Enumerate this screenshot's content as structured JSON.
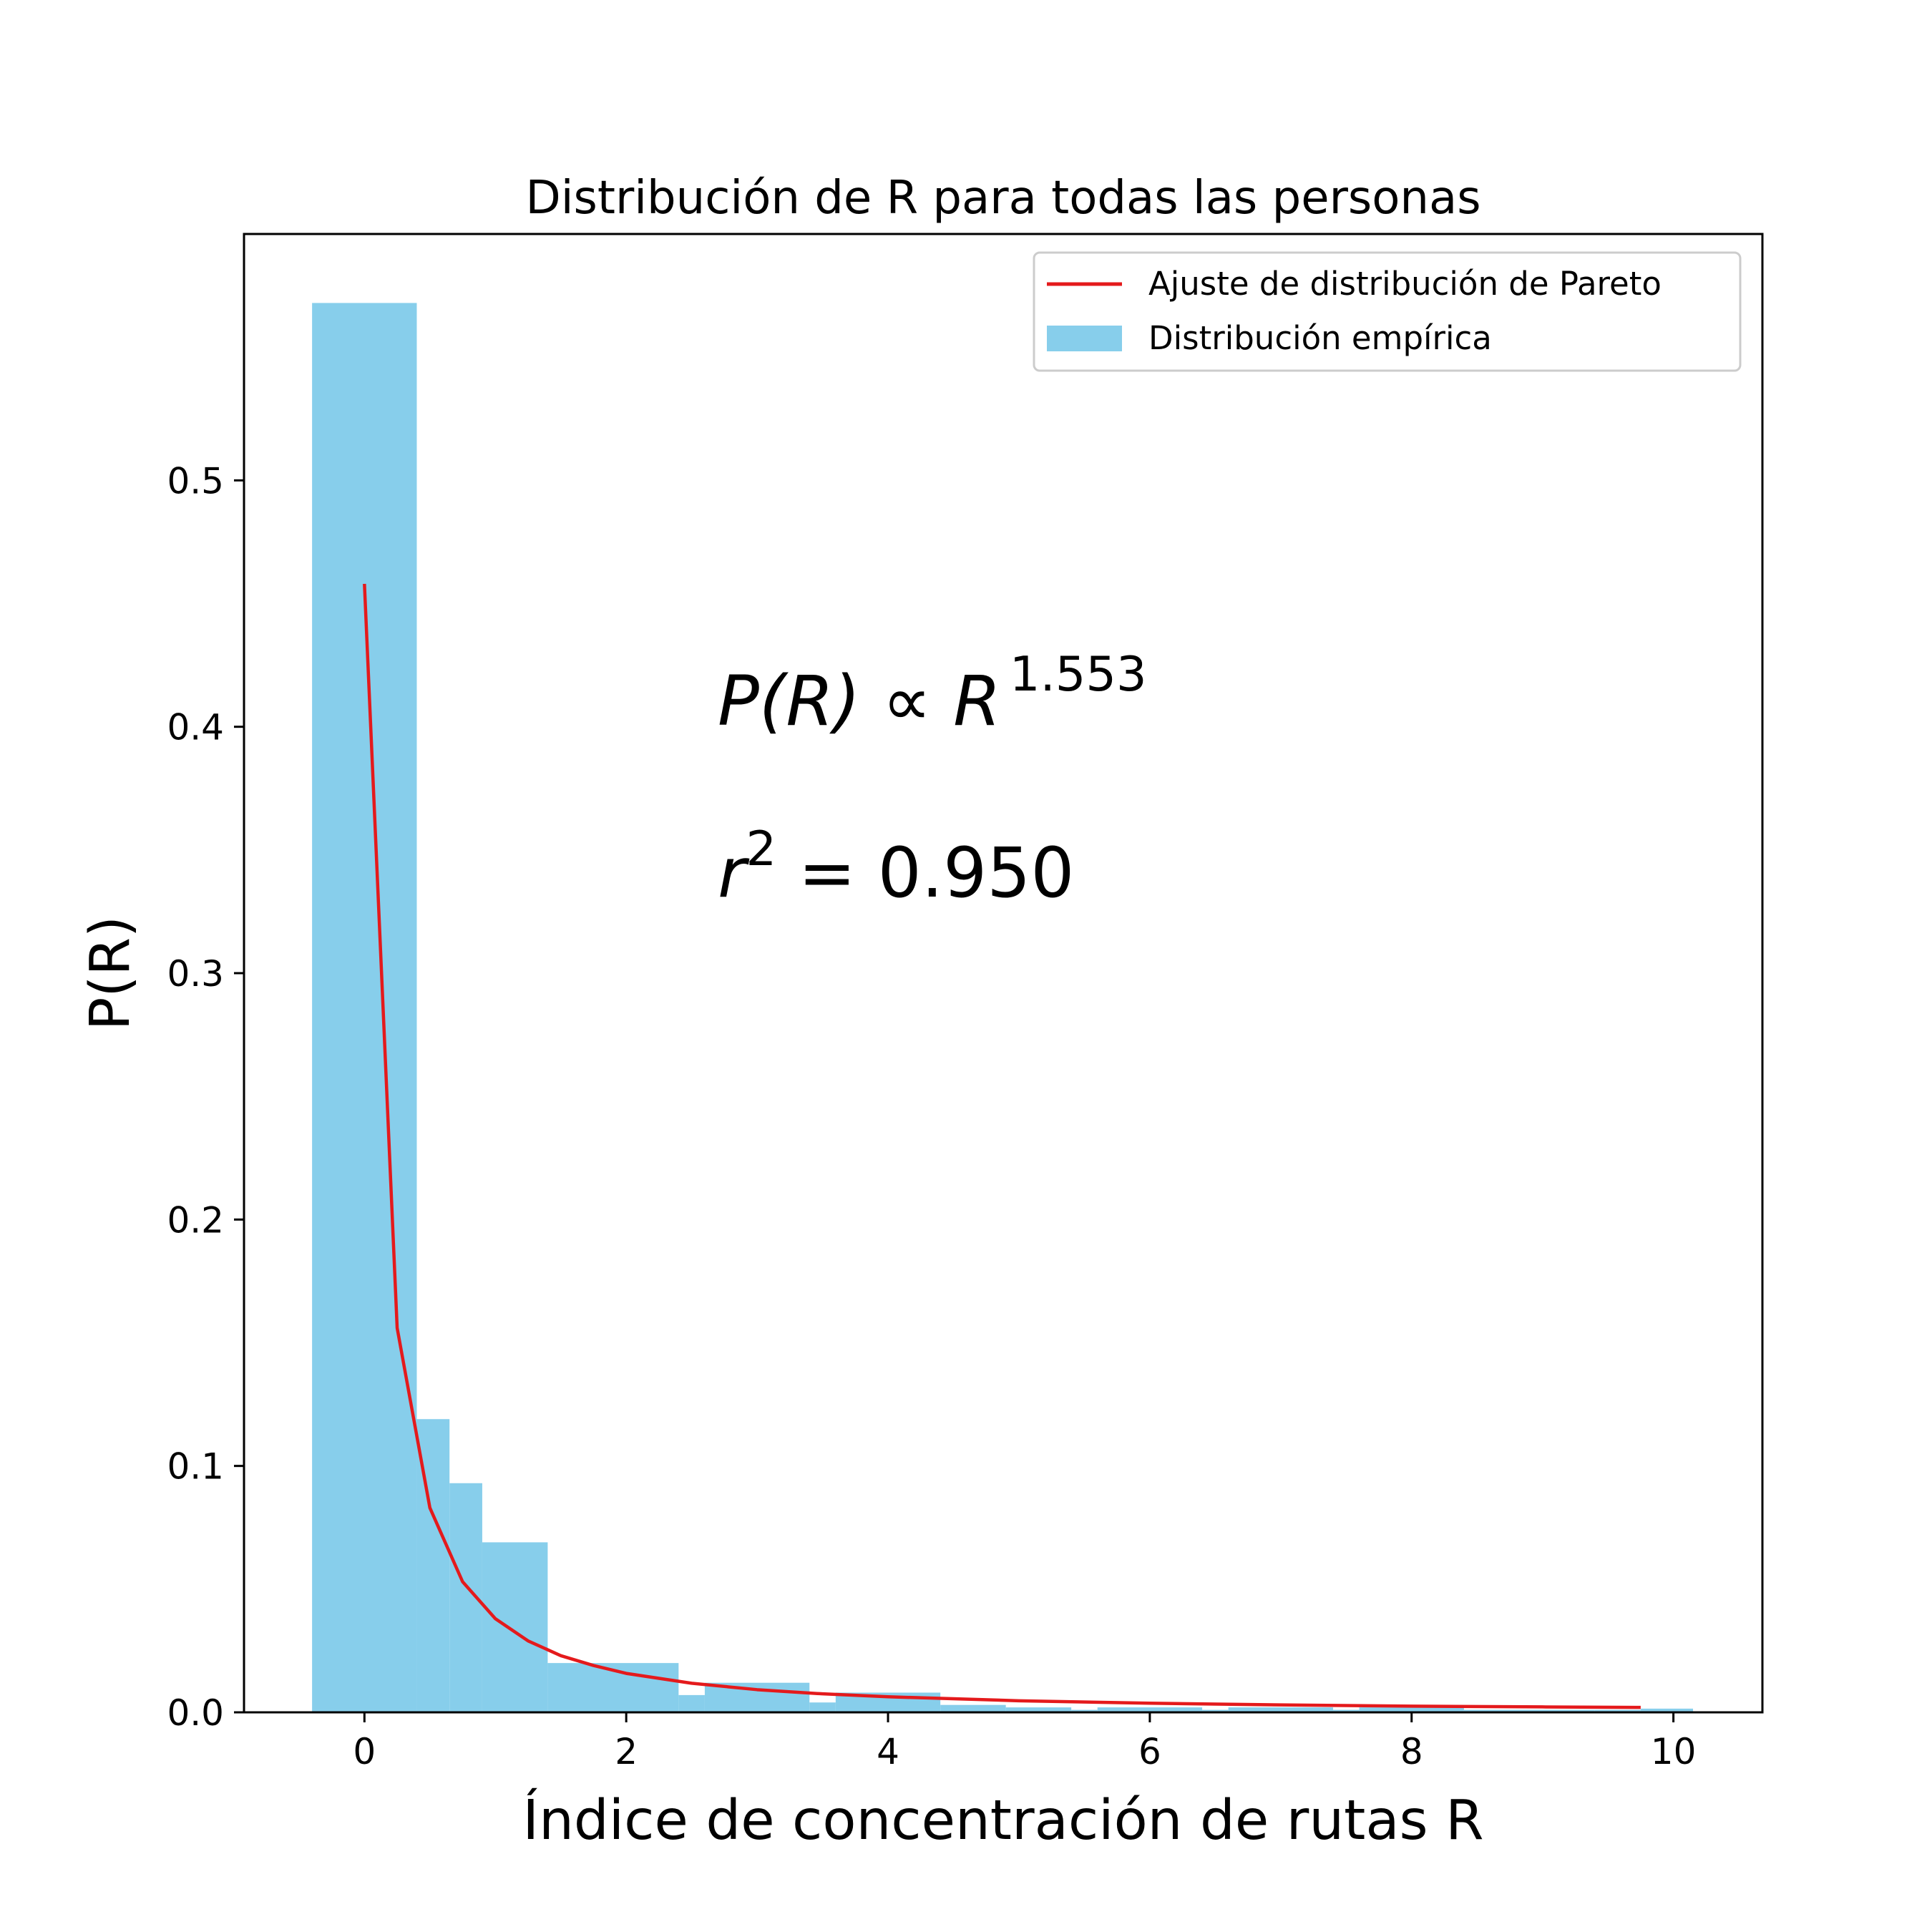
{
  "chart_data": {
    "type": "bar",
    "title": "Distribución de R para todas las personas",
    "xlabel": "Índice de concentración de rutas R",
    "ylabel": "P(R)",
    "xlim": [
      -0.92,
      10.68
    ],
    "ylim": [
      0.0,
      0.6
    ],
    "xticks": [
      0,
      2,
      4,
      6,
      8,
      10
    ],
    "xtick_labels": [
      "0",
      "2",
      "4",
      "6",
      "8",
      "10"
    ],
    "yticks": [
      0.0,
      0.1,
      0.2,
      0.3,
      0.4,
      0.5
    ],
    "ytick_labels": [
      "0.0",
      "0.1",
      "0.2",
      "0.3",
      "0.4",
      "0.5"
    ],
    "grid": false,
    "legend": {
      "placement": "top-right",
      "entries": [
        "Ajuste de distribución de Pareto",
        "Distribución empírica"
      ]
    },
    "series": [
      {
        "name": "Distribución empírica",
        "kind": "histogram",
        "color": "#87ceeb",
        "bins": [
          {
            "x0": -0.4,
            "x1": 0.4,
            "value": 0.572
          },
          {
            "x0": 0.4,
            "x1": 0.65,
            "value": 0.119
          },
          {
            "x0": 0.65,
            "x1": 0.9,
            "value": 0.093
          },
          {
            "x0": 0.9,
            "x1": 1.4,
            "value": 0.069
          },
          {
            "x0": 1.4,
            "x1": 2.4,
            "value": 0.02
          },
          {
            "x0": 2.4,
            "x1": 2.6,
            "value": 0.007
          },
          {
            "x0": 2.6,
            "x1": 3.4,
            "value": 0.012
          },
          {
            "x0": 3.4,
            "x1": 3.6,
            "value": 0.004
          },
          {
            "x0": 3.6,
            "x1": 4.4,
            "value": 0.008
          },
          {
            "x0": 4.4,
            "x1": 4.9,
            "value": 0.003
          },
          {
            "x0": 4.9,
            "x1": 5.4,
            "value": 0.002
          },
          {
            "x0": 5.4,
            "x1": 5.6,
            "value": 0.001
          },
          {
            "x0": 5.6,
            "x1": 6.4,
            "value": 0.002
          },
          {
            "x0": 6.4,
            "x1": 6.6,
            "value": 0.001
          },
          {
            "x0": 6.6,
            "x1": 7.4,
            "value": 0.002
          },
          {
            "x0": 7.4,
            "x1": 7.6,
            "value": 0.001
          },
          {
            "x0": 7.6,
            "x1": 8.4,
            "value": 0.002
          },
          {
            "x0": 8.4,
            "x1": 8.6,
            "value": 0.001
          },
          {
            "x0": 8.6,
            "x1": 9.4,
            "value": 0.001
          },
          {
            "x0": 9.4,
            "x1": 9.75,
            "value": 0.001
          },
          {
            "x0": 9.75,
            "x1": 10.15,
            "value": 0.0015
          }
        ]
      },
      {
        "name": "Ajuste de distribución de Pareto",
        "kind": "line",
        "color": "#e41a1c",
        "x": [
          0.0,
          0.25,
          0.5,
          0.75,
          1.0,
          1.25,
          1.5,
          1.75,
          2.0,
          2.5,
          3.0,
          3.5,
          4.0,
          5.0,
          6.0,
          7.0,
          8.0,
          9.0,
          9.75
        ],
        "y": [
          0.458,
          0.156,
          0.083,
          0.053,
          0.038,
          0.029,
          0.023,
          0.019,
          0.0158,
          0.0118,
          0.0092,
          0.0075,
          0.0063,
          0.0047,
          0.0037,
          0.003,
          0.0025,
          0.0022,
          0.002
        ]
      }
    ],
    "annotations": {
      "formula": {
        "lhs": "P(R) ∝ R",
        "exponent": "1.553"
      },
      "r2": {
        "lhs": "r",
        "exponent": "2",
        "rhs": " = 0.950"
      }
    }
  }
}
